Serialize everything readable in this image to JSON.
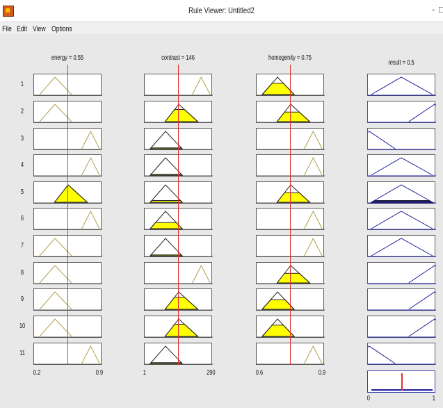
{
  "window": {
    "title": "Rule Viewer: Untitled2",
    "minimize": "-",
    "restore": "□"
  },
  "menu": {
    "file": "File",
    "edit": "Edit",
    "view": "View",
    "options": "Options"
  },
  "inputs": [
    {
      "header": "energy = 0.55",
      "range_min": "0.2",
      "range_max": "0.9",
      "value_frac": 0.5
    },
    {
      "header": "contrast = 146",
      "range_min": "1",
      "range_max": "290",
      "value_frac": 0.5
    },
    {
      "header": "homogenity = 0.75",
      "range_min": "0.6",
      "range_max": "0.9",
      "value_frac": 0.5
    }
  ],
  "output": {
    "header": "result = 0.5",
    "range_min": "0",
    "range_max": "1",
    "value_frac": 0.5
  },
  "rule_numbers": [
    "1",
    "2",
    "3",
    "4",
    "5",
    "6",
    "7",
    "8",
    "9",
    "10",
    "11"
  ],
  "membership": {
    "energy": [
      "low",
      "low",
      "high",
      "high",
      "mid",
      "high",
      "low",
      "low",
      "low",
      "low",
      "high"
    ],
    "contrast": [
      "high",
      "mid",
      "low",
      "low",
      "low",
      "low",
      "low",
      "high",
      "mid",
      "mid",
      "low"
    ],
    "homogenity": [
      "low",
      "mid",
      "high",
      "high",
      "mid",
      "high",
      "high",
      "mid",
      "low",
      "low",
      "high"
    ],
    "result": [
      "mid",
      "high",
      "low",
      "mid",
      "mid",
      "mid",
      "mid",
      "high",
      "high",
      "high",
      "low"
    ]
  },
  "firing": {
    "energy": [
      0,
      0,
      0,
      0,
      1,
      0,
      0,
      0,
      0,
      0,
      0
    ],
    "contrast": [
      0,
      0.7,
      0.05,
      0.05,
      0.1,
      0.35,
      0.05,
      0,
      0.7,
      0.7,
      0.05
    ],
    "homogenity": [
      0.65,
      0.55,
      0,
      0,
      0.55,
      0,
      0,
      0.55,
      0.55,
      0.65,
      0
    ],
    "result": [
      0,
      0,
      0,
      0,
      0.1,
      0,
      0,
      0,
      0,
      0,
      0
    ]
  },
  "colors": {
    "fill": "#ffff00",
    "mf_input": "#b0a050",
    "mf_output": "#1a1aa0",
    "indicator": "#e03030"
  }
}
